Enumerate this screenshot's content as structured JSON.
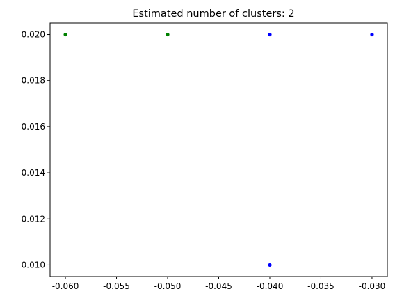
{
  "chart_data": {
    "type": "scatter",
    "title": "Estimated number of clusters: 2",
    "xlabel": "",
    "ylabel": "",
    "xlim": [
      -0.0615,
      -0.0285
    ],
    "ylim": [
      0.0095,
      0.0205
    ],
    "x_ticks": [
      "-0.060",
      "-0.055",
      "-0.050",
      "-0.045",
      "-0.040",
      "-0.035",
      "-0.030"
    ],
    "x_tick_values": [
      -0.06,
      -0.055,
      -0.05,
      -0.045,
      -0.04,
      -0.035,
      -0.03
    ],
    "y_ticks": [
      "0.010",
      "0.012",
      "0.014",
      "0.016",
      "0.018",
      "0.020"
    ],
    "y_tick_values": [
      0.01,
      0.012,
      0.014,
      0.016,
      0.018,
      0.02
    ],
    "grid": false,
    "series": [
      {
        "color": "#008000",
        "points": [
          {
            "x": -0.06,
            "y": 0.02
          },
          {
            "x": -0.05,
            "y": 0.02
          }
        ]
      },
      {
        "color": "#0000ff",
        "points": [
          {
            "x": -0.04,
            "y": 0.02
          },
          {
            "x": -0.03,
            "y": 0.02
          },
          {
            "x": -0.04,
            "y": 0.01
          }
        ]
      }
    ]
  }
}
